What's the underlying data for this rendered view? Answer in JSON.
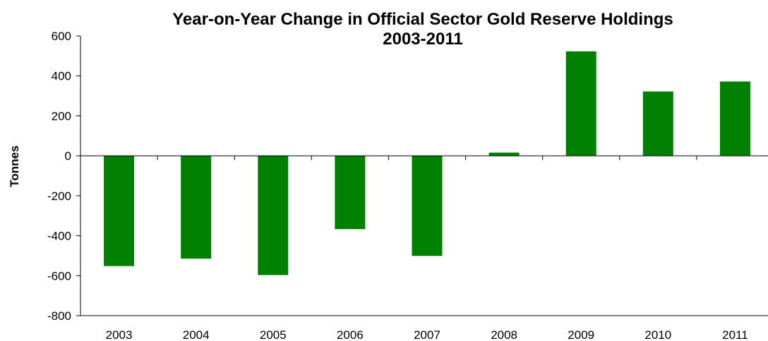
{
  "chart_data": {
    "type": "bar",
    "title": "Year-on-Year Change in Official Sector Gold Reserve Holdings",
    "subtitle": "2003-2011",
    "xlabel": "",
    "ylabel": "Tonnes",
    "categories": [
      "2003",
      "2004",
      "2005",
      "2006",
      "2007",
      "2008",
      "2009",
      "2010",
      "2011"
    ],
    "values": [
      -552,
      -515,
      -597,
      -367,
      -501,
      16,
      523,
      322,
      372
    ],
    "ylim": [
      -800,
      600
    ],
    "yticks": [
      -800,
      -600,
      -400,
      -200,
      0,
      200,
      400,
      600
    ],
    "bar_color": "#008000",
    "grid": false,
    "legend": "none"
  }
}
